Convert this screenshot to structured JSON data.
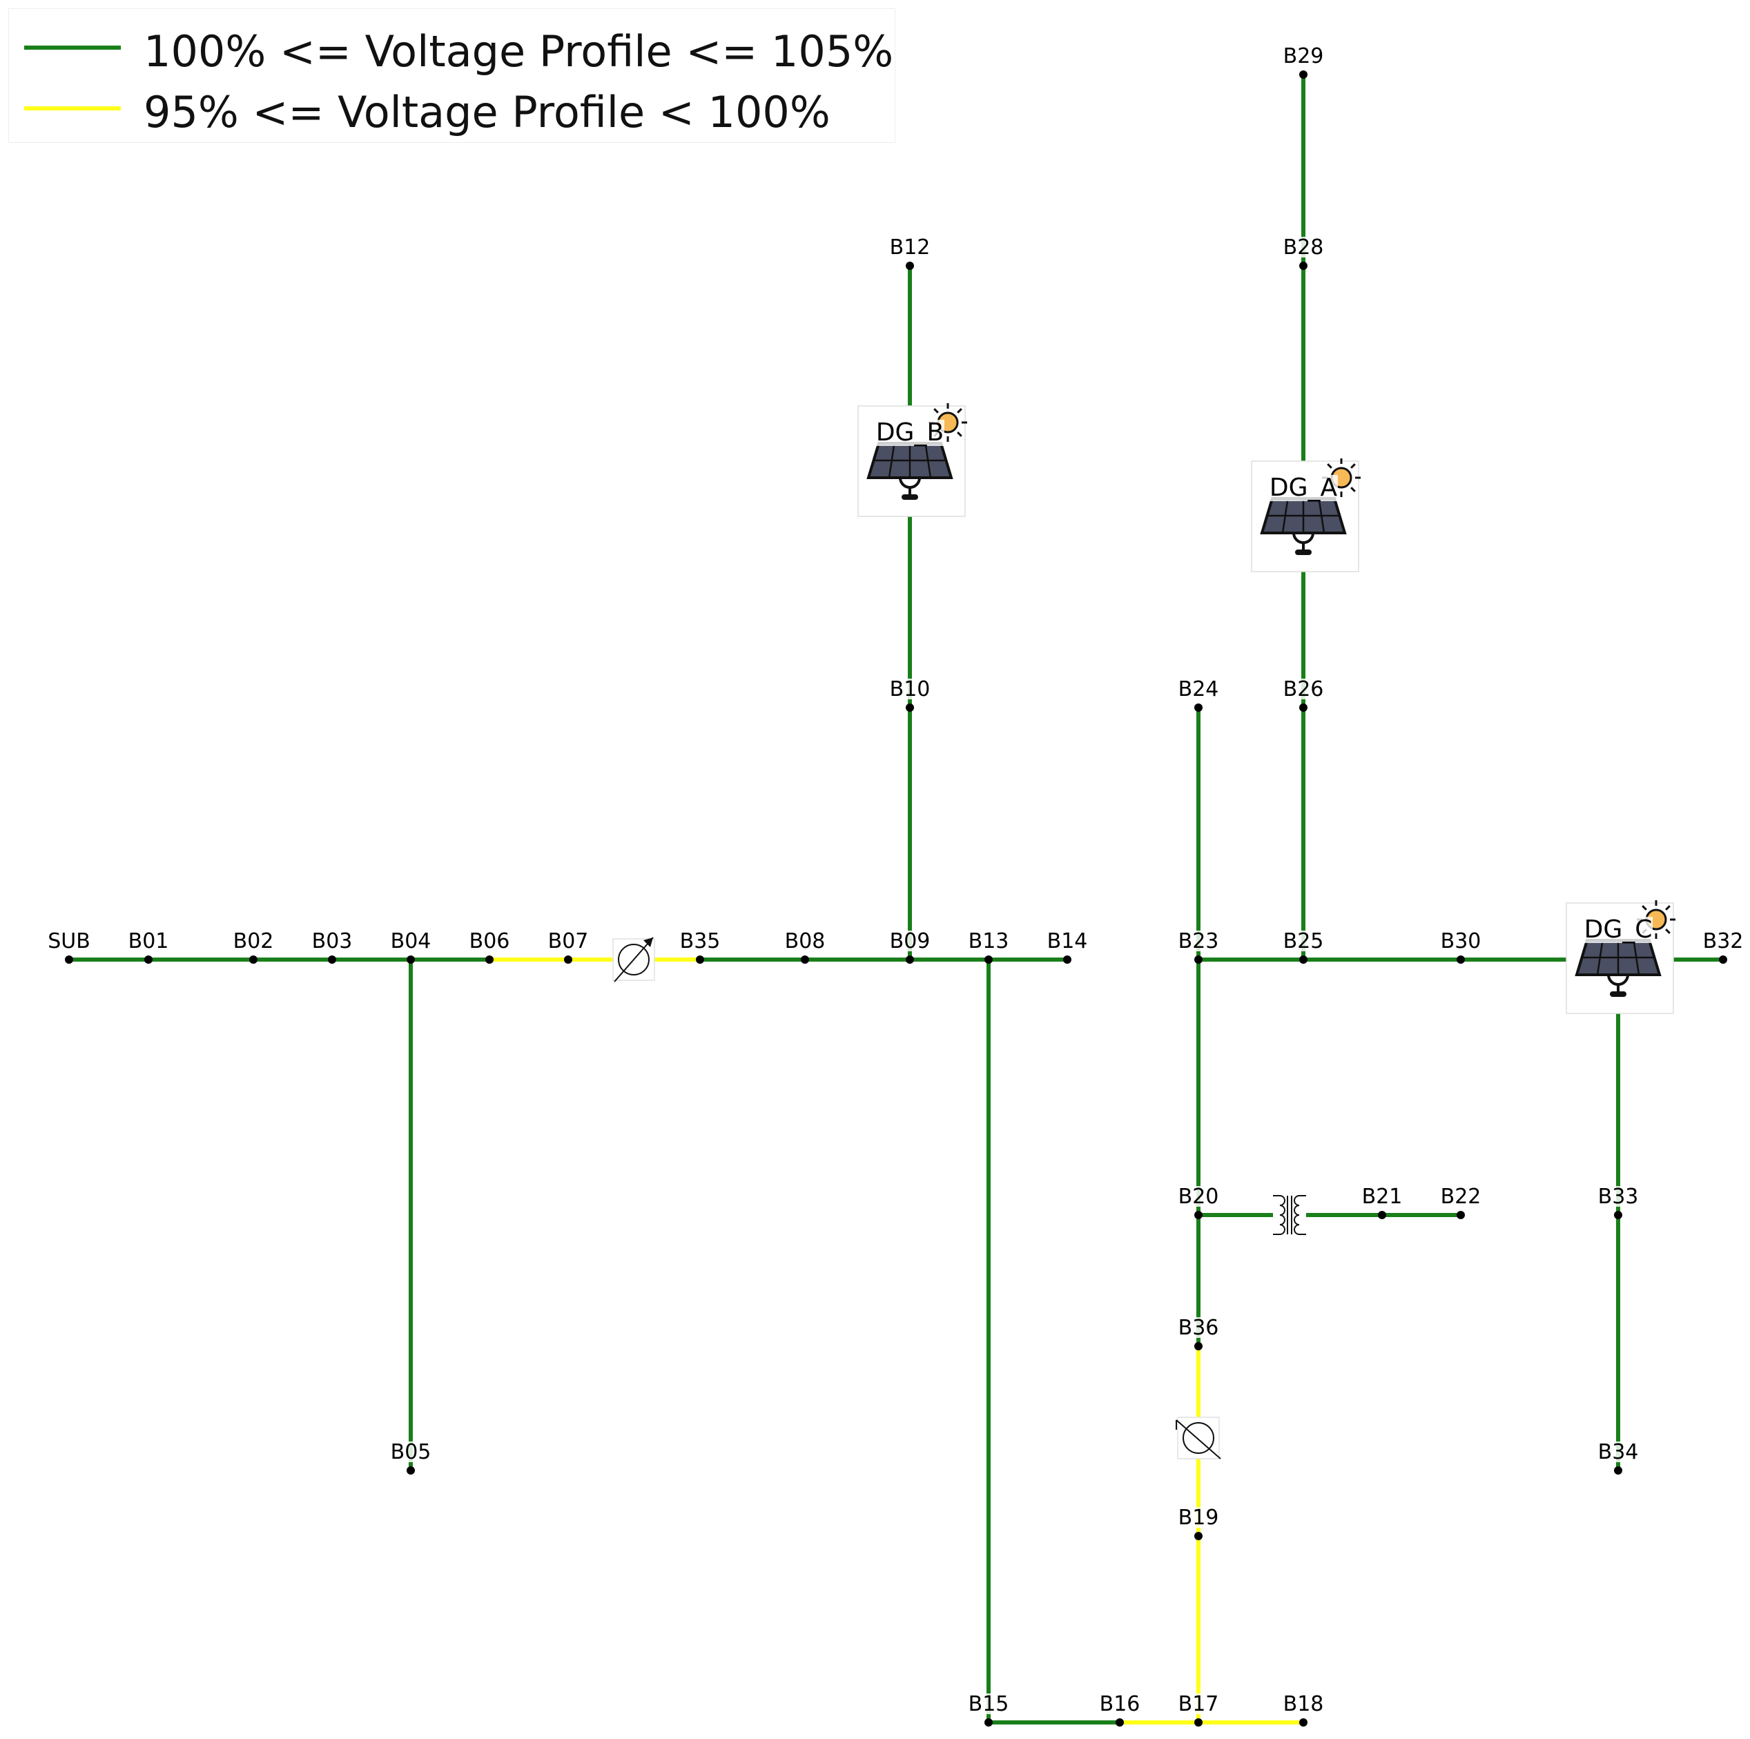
{
  "legend": [
    {
      "label": "100% <= Voltage Profile <= 105%",
      "color": "#1a7f1a"
    },
    {
      "label": "95% <= Voltage Profile < 100%",
      "color": "#ffff1a"
    }
  ],
  "colors": {
    "green": "#1a7f1a",
    "yellow": "#ffff1a",
    "node": "#000000"
  },
  "buses": [
    "SUB",
    "B01",
    "B02",
    "B03",
    "B04",
    "B05",
    "B06",
    "B07",
    "B35",
    "B08",
    "B09",
    "B10",
    "B12",
    "B13",
    "B14",
    "B15",
    "B16",
    "B17",
    "B18",
    "B19",
    "B36",
    "B20",
    "B21",
    "B22",
    "B23",
    "B24",
    "B25",
    "B26",
    "B28",
    "B29",
    "B30",
    "B32",
    "B33",
    "B34"
  ],
  "generators": [
    {
      "id": "DG_A",
      "label": "DG_A",
      "icon": "solar-panel-icon"
    },
    {
      "id": "DG_B",
      "label": "DG_B",
      "icon": "solar-panel-icon"
    },
    {
      "id": "DG_C",
      "label": "DG_C",
      "icon": "solar-panel-icon"
    }
  ],
  "devices": [
    {
      "id": "regulator-1",
      "icon": "voltage-regulator-icon",
      "between": [
        "B07",
        "B35"
      ]
    },
    {
      "id": "regulator-2",
      "icon": "voltage-regulator-icon",
      "between": [
        "B36",
        "B19"
      ]
    },
    {
      "id": "transformer-1",
      "icon": "transformer-icon",
      "between": [
        "B20",
        "B21"
      ]
    }
  ],
  "lines": [
    {
      "from": "SUB",
      "to": "B01",
      "status": "green"
    },
    {
      "from": "B01",
      "to": "B02",
      "status": "green"
    },
    {
      "from": "B02",
      "to": "B03",
      "status": "green"
    },
    {
      "from": "B03",
      "to": "B04",
      "status": "green"
    },
    {
      "from": "B04",
      "to": "B05",
      "status": "green"
    },
    {
      "from": "B04",
      "to": "B06",
      "status": "green"
    },
    {
      "from": "B06",
      "to": "B07",
      "status": "yellow"
    },
    {
      "from": "B07",
      "to": "B35",
      "status": "yellow"
    },
    {
      "from": "B35",
      "to": "B08",
      "status": "green"
    },
    {
      "from": "B08",
      "to": "B09",
      "status": "green"
    },
    {
      "from": "B09",
      "to": "B10",
      "status": "green"
    },
    {
      "from": "B10",
      "to": "DG_B",
      "status": "green"
    },
    {
      "from": "DG_B",
      "to": "B12",
      "status": "green"
    },
    {
      "from": "B09",
      "to": "B13",
      "status": "green"
    },
    {
      "from": "B13",
      "to": "B14",
      "status": "green"
    },
    {
      "from": "B13",
      "to": "B15",
      "status": "green"
    },
    {
      "from": "B15",
      "to": "B16",
      "status": "green"
    },
    {
      "from": "B16",
      "to": "B17",
      "status": "yellow"
    },
    {
      "from": "B17",
      "to": "B18",
      "status": "yellow"
    },
    {
      "from": "B17",
      "to": "B19",
      "status": "yellow"
    },
    {
      "from": "B19",
      "to": "B36",
      "status": "yellow"
    },
    {
      "from": "B36",
      "to": "B20",
      "status": "green"
    },
    {
      "from": "B20",
      "to": "B21",
      "status": "green"
    },
    {
      "from": "B21",
      "to": "B22",
      "status": "green"
    },
    {
      "from": "B20",
      "to": "B23",
      "status": "green"
    },
    {
      "from": "B23",
      "to": "B24",
      "status": "green"
    },
    {
      "from": "B23",
      "to": "B25",
      "status": "green"
    },
    {
      "from": "B25",
      "to": "B26",
      "status": "green"
    },
    {
      "from": "B26",
      "to": "DG_A",
      "status": "green"
    },
    {
      "from": "DG_A",
      "to": "B28",
      "status": "green"
    },
    {
      "from": "B28",
      "to": "B29",
      "status": "green"
    },
    {
      "from": "B25",
      "to": "B30",
      "status": "green"
    },
    {
      "from": "B30",
      "to": "DG_C",
      "status": "green"
    },
    {
      "from": "DG_C",
      "to": "B32",
      "status": "green"
    },
    {
      "from": "DG_C",
      "to": "B33",
      "status": "green"
    },
    {
      "from": "B33",
      "to": "B34",
      "status": "green"
    }
  ]
}
